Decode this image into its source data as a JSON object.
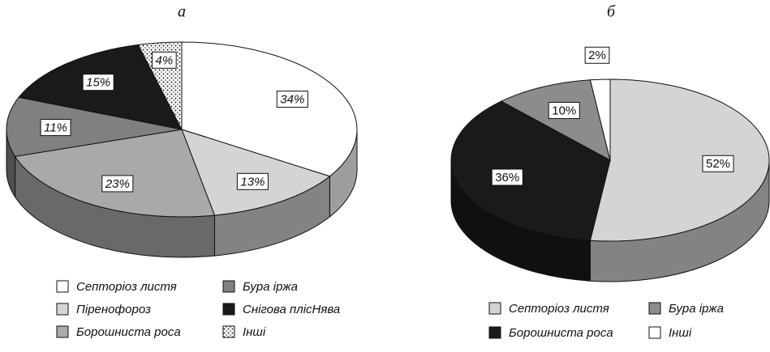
{
  "chart_data": [
    {
      "type": "pie",
      "title": "а",
      "categories": [
        "Септоріоз листя",
        "Піренофороз",
        "Борошниста роса",
        "Бура іржа",
        "Снігова плісНява",
        "Інші"
      ],
      "values": [
        34,
        13,
        23,
        11,
        15,
        4
      ],
      "value_labels": [
        "34%",
        "13%",
        "23%",
        "11%",
        "15%",
        "4%"
      ],
      "colors": [
        "#ffffff",
        "#d4d4d4",
        "#a9a9a9",
        "#808080",
        "#1a1a1a",
        "#ffffff"
      ],
      "patterns": [
        null,
        null,
        null,
        null,
        null,
        "dots"
      ]
    },
    {
      "type": "pie",
      "title": "б",
      "categories": [
        "Септоріоз листя",
        "Борошниста роса",
        "Бура іржа",
        "Інші"
      ],
      "values": [
        52,
        36,
        10,
        2
      ],
      "value_labels": [
        "52%",
        "36%",
        "10%",
        "2%"
      ],
      "colors": [
        "#d4d4d4",
        "#1a1a1a",
        "#8c8c8c",
        "#ffffff"
      ],
      "patterns": [
        null,
        null,
        null,
        null
      ]
    }
  ]
}
